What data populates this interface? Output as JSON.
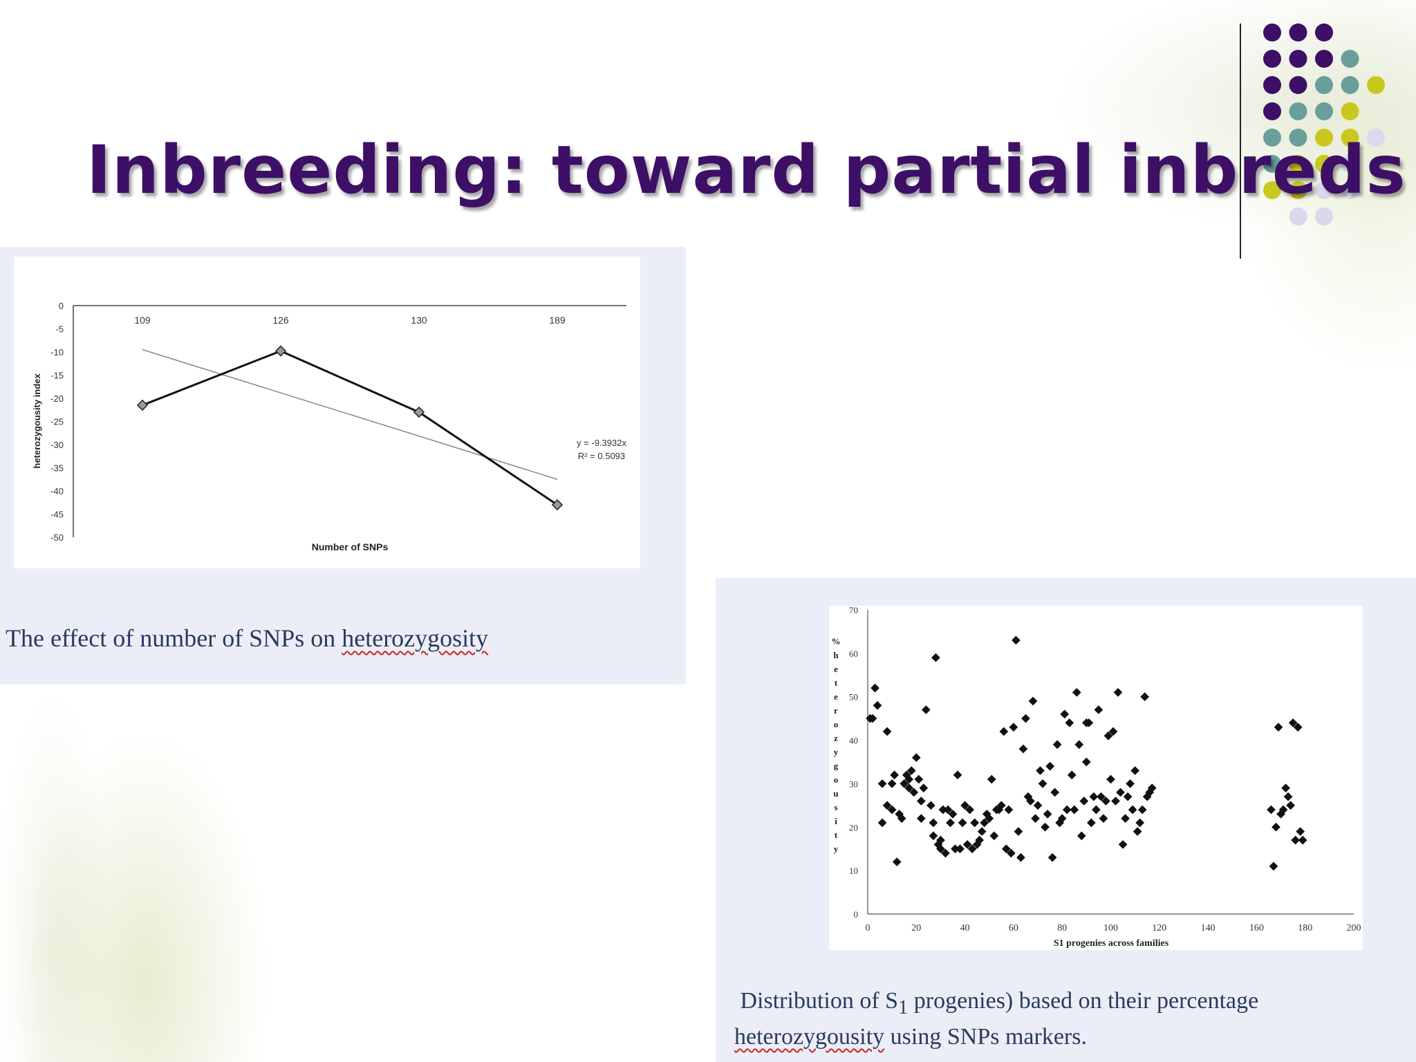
{
  "slide": {
    "title": "Inbreeding: toward partial inbreds",
    "colors": {
      "title": "#3d0f66",
      "dot_purple": "#3d0f66",
      "dot_teal": "#6a9e9a",
      "dot_yellow": "#c8c81e",
      "dot_lavender": "#d9d8ec"
    }
  },
  "captions": {
    "chart1": {
      "pre": "The effect of number of SNPs on ",
      "underlined": "heterozygosity"
    },
    "chart2": {
      "line1_pre": "Distribution of S",
      "line1_sub": "1",
      "line1_post": " progenies) based on their percentage",
      "line2_underlined": "heterozygousity",
      "line2_post": " using SNPs markers."
    }
  },
  "chart_data": [
    {
      "type": "line",
      "title": "",
      "xlabel": "Number of SNPs",
      "ylabel": "heterozygousity index",
      "categories": [
        "109",
        "126",
        "130",
        "189"
      ],
      "series": [
        {
          "values": [
            -21.5,
            -9.8,
            -23,
            -43
          ]
        }
      ],
      "trendline": {
        "start": -9.5,
        "end": -37.5,
        "equation": "y = -9.3932x",
        "r2": "R² = 0.5093"
      },
      "ylim": [
        -50,
        0
      ],
      "yticks": [
        "0",
        "-5",
        "-10",
        "-15",
        "-20",
        "-25",
        "-30",
        "-35",
        "-40",
        "-45",
        "-50"
      ],
      "grid": false
    },
    {
      "type": "scatter",
      "title": "",
      "xlabel": "S1 progenies across families",
      "ylabel": "% heterozygousity",
      "xlim": [
        0,
        200
      ],
      "ylim": [
        0,
        70
      ],
      "xticks": [
        "0",
        "20",
        "40",
        "60",
        "80",
        "100",
        "120",
        "140",
        "160",
        "180",
        "200"
      ],
      "yticks": [
        "0",
        "10",
        "20",
        "30",
        "40",
        "50",
        "60",
        "70"
      ],
      "grid": false,
      "points": [
        [
          1,
          45
        ],
        [
          2,
          45
        ],
        [
          3,
          52
        ],
        [
          4,
          48
        ],
        [
          6,
          30
        ],
        [
          6,
          21
        ],
        [
          8,
          25
        ],
        [
          8,
          42
        ],
        [
          10,
          30
        ],
        [
          10,
          24
        ],
        [
          11,
          32
        ],
        [
          12,
          12
        ],
        [
          13,
          23
        ],
        [
          14,
          22
        ],
        [
          15,
          30
        ],
        [
          16,
          32
        ],
        [
          17,
          31
        ],
        [
          17,
          29
        ],
        [
          18,
          33
        ],
        [
          19,
          28
        ],
        [
          20,
          36
        ],
        [
          21,
          31
        ],
        [
          22,
          26
        ],
        [
          22,
          22
        ],
        [
          23,
          29
        ],
        [
          24,
          47
        ],
        [
          26,
          25
        ],
        [
          27,
          21
        ],
        [
          27,
          18
        ],
        [
          28,
          59
        ],
        [
          29,
          16
        ],
        [
          30,
          17
        ],
        [
          30,
          15
        ],
        [
          31,
          24
        ],
        [
          32,
          14
        ],
        [
          33,
          24
        ],
        [
          34,
          21
        ],
        [
          35,
          23
        ],
        [
          36,
          15
        ],
        [
          37,
          32
        ],
        [
          38,
          15
        ],
        [
          39,
          21
        ],
        [
          40,
          25
        ],
        [
          41,
          16
        ],
        [
          42,
          24
        ],
        [
          43,
          15
        ],
        [
          44,
          21
        ],
        [
          45,
          16
        ],
        [
          46,
          17
        ],
        [
          47,
          19
        ],
        [
          48,
          21
        ],
        [
          49,
          23
        ],
        [
          50,
          22
        ],
        [
          51,
          31
        ],
        [
          52,
          18
        ],
        [
          53,
          24
        ],
        [
          54,
          24
        ],
        [
          55,
          25
        ],
        [
          56,
          42
        ],
        [
          57,
          15
        ],
        [
          58,
          24
        ],
        [
          59,
          14
        ],
        [
          60,
          43
        ],
        [
          61,
          63
        ],
        [
          62,
          19
        ],
        [
          63,
          13
        ],
        [
          64,
          38
        ],
        [
          65,
          45
        ],
        [
          66,
          27
        ],
        [
          67,
          26
        ],
        [
          68,
          49
        ],
        [
          69,
          22
        ],
        [
          70,
          25
        ],
        [
          71,
          33
        ],
        [
          72,
          30
        ],
        [
          73,
          20
        ],
        [
          74,
          23
        ],
        [
          75,
          34
        ],
        [
          76,
          13
        ],
        [
          77,
          28
        ],
        [
          78,
          39
        ],
        [
          79,
          21
        ],
        [
          80,
          22
        ],
        [
          81,
          46
        ],
        [
          82,
          24
        ],
        [
          83,
          44
        ],
        [
          84,
          32
        ],
        [
          85,
          24
        ],
        [
          86,
          51
        ],
        [
          87,
          39
        ],
        [
          88,
          18
        ],
        [
          89,
          26
        ],
        [
          90,
          35
        ],
        [
          90,
          44
        ],
        [
          91,
          44
        ],
        [
          92,
          21
        ],
        [
          93,
          27
        ],
        [
          94,
          24
        ],
        [
          95,
          47
        ],
        [
          96,
          27
        ],
        [
          97,
          22
        ],
        [
          98,
          26
        ],
        [
          99,
          41
        ],
        [
          100,
          31
        ],
        [
          101,
          42
        ],
        [
          102,
          26
        ],
        [
          103,
          51
        ],
        [
          104,
          28
        ],
        [
          105,
          16
        ],
        [
          106,
          22
        ],
        [
          107,
          27
        ],
        [
          108,
          30
        ],
        [
          109,
          24
        ],
        [
          110,
          33
        ],
        [
          111,
          19
        ],
        [
          112,
          21
        ],
        [
          113,
          24
        ],
        [
          114,
          50
        ],
        [
          115,
          27
        ],
        [
          116,
          28
        ],
        [
          117,
          29
        ],
        [
          166,
          24
        ],
        [
          167,
          11
        ],
        [
          168,
          20
        ],
        [
          169,
          43
        ],
        [
          170,
          23
        ],
        [
          171,
          24
        ],
        [
          172,
          29
        ],
        [
          173,
          27
        ],
        [
          174,
          25
        ],
        [
          175,
          44
        ],
        [
          176,
          17
        ],
        [
          177,
          43
        ],
        [
          178,
          19
        ],
        [
          179,
          17
        ]
      ]
    }
  ]
}
